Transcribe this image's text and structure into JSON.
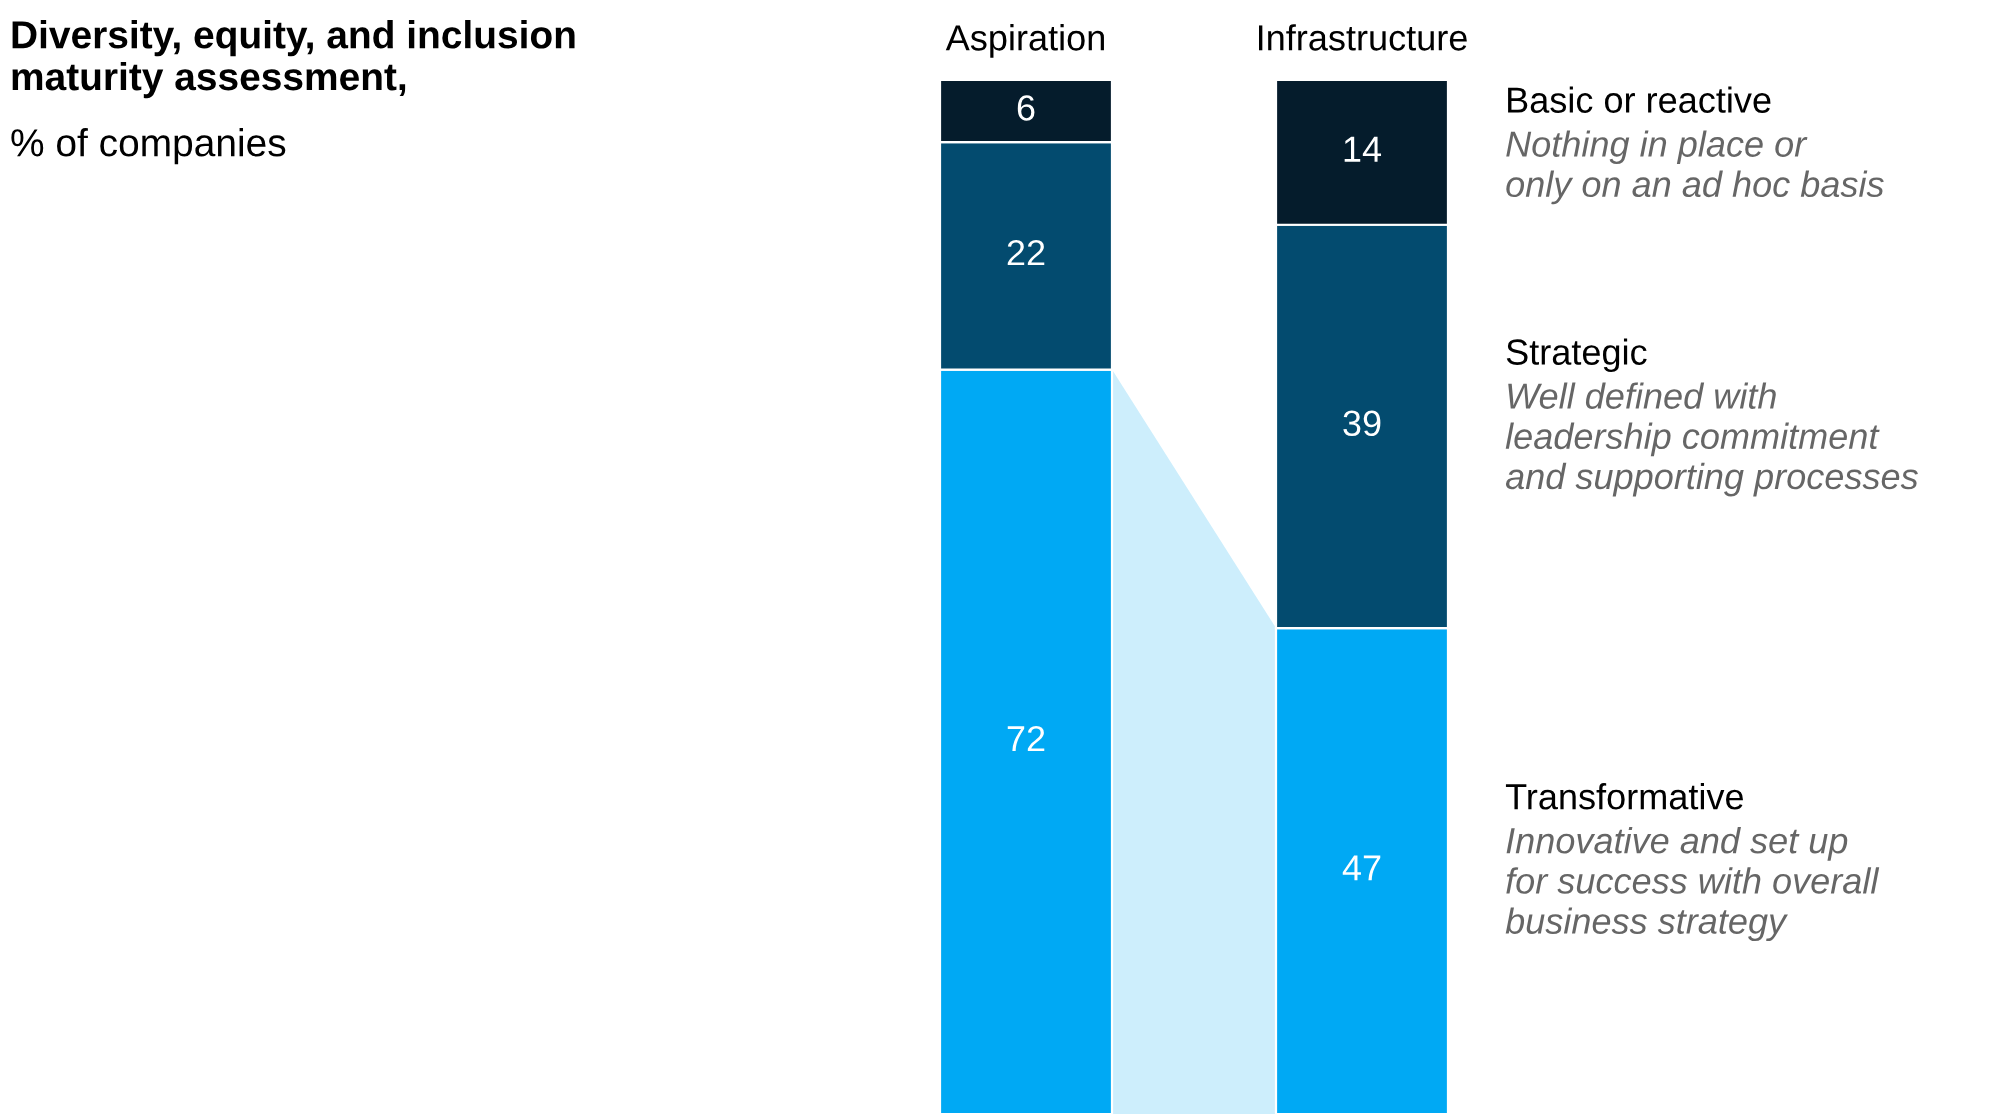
{
  "chart_data": {
    "type": "bar",
    "stacked": true,
    "title": "Diversity, equity, and inclusion\nmaturity assessment,",
    "subtitle": "% of companies",
    "categories": [
      "Aspiration",
      "Infrastructure"
    ],
    "series": [
      {
        "name": "Transformative",
        "color": "#00a9f4",
        "values": [
          72,
          47
        ]
      },
      {
        "name": "Strategic",
        "color": "#034b6f",
        "values": [
          22,
          39
        ]
      },
      {
        "name": "Basic or reactive",
        "color": "#051c2c",
        "values": [
          6,
          14
        ]
      }
    ],
    "annotations": [
      "Innovative and set up\nfor success with overall\nbusiness strategy",
      "Well defined with\nleadership commitment\nand supporting processes",
      "Nothing in place or\nonly on an ad hoc basis"
    ],
    "data_labels": true,
    "grid": false,
    "legend": false
  }
}
